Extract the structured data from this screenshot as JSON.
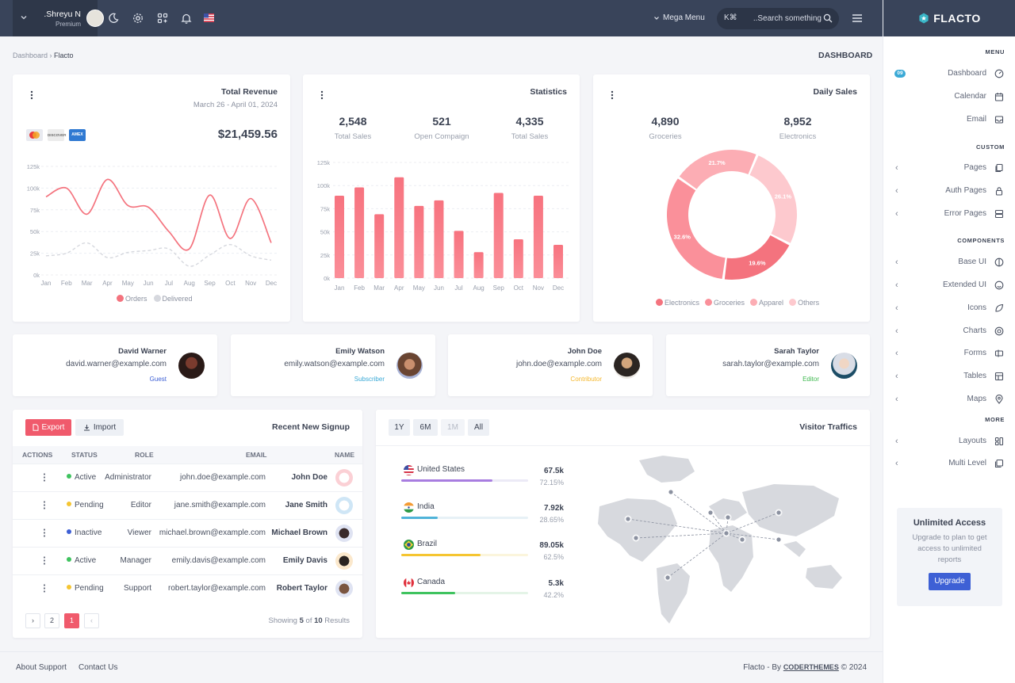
{
  "topbar": {
    "user_name": ".Shreyu N",
    "user_role": "Premium",
    "mega_menu": "Mega Menu",
    "search_kbd": "K⌘",
    "search_placeholder": "..Search something"
  },
  "sidebar": {
    "logo": "FLACTO",
    "sections": [
      "MENU",
      "CUSTOM",
      "COMPONENTS",
      "MORE"
    ],
    "dashboard_badge": "09",
    "menu": [
      "Dashboard",
      "Calendar",
      "Email"
    ],
    "custom": [
      "Pages",
      "Auth Pages",
      "Error Pages"
    ],
    "components": [
      "Base UI",
      "Extended UI",
      "Icons",
      "Charts",
      "Forms",
      "Tables",
      "Maps"
    ],
    "more": [
      "Layouts",
      "Multi Level"
    ],
    "upgrade": {
      "title": "Unlimited Access",
      "desc": "Upgrade to plan to get access to unlimited reports",
      "button": "Upgrade"
    }
  },
  "breadcrumb": {
    "root": "Dashboard",
    "current": "Flacto"
  },
  "page_title": "DASHBOARD",
  "revenue": {
    "title": "Total Revenue",
    "date_range": "March 26 - April 01, 2024",
    "amount": "$21,459.56",
    "cards": [
      "",
      "DISCOVER",
      "AMEX"
    ],
    "legend": [
      "Orders",
      "Delivered"
    ]
  },
  "statistics": {
    "title": "Statistics",
    "items": [
      {
        "value": "2,548",
        "label": "Total Sales"
      },
      {
        "value": "521",
        "label": "Open Compaign"
      },
      {
        "value": "4,335",
        "label": "Total Sales"
      }
    ]
  },
  "daily_sales": {
    "title": "Daily Sales",
    "items": [
      {
        "value": "4,890",
        "label": "Groceries"
      },
      {
        "value": "8,952",
        "label": "Electronics"
      }
    ]
  },
  "users": [
    {
      "name": "David Warner",
      "email": "david.warner@example.com",
      "role": "Guest",
      "role_color": "#3e60d5"
    },
    {
      "name": "Emily Watson",
      "email": "emily.watson@example.com",
      "role": "Subscriber",
      "role_color": "#3aa9d6"
    },
    {
      "name": "John Doe",
      "email": "john.doe@example.com",
      "role": "Contributor",
      "role_color": "#f5b82e"
    },
    {
      "name": "Sarah Taylor",
      "email": "sarah.taylor@example.com",
      "role": "Editor",
      "role_color": "#3fb950"
    }
  ],
  "signups": {
    "title": "Recent New Signup",
    "export": "Export",
    "import": "Import",
    "headers": [
      "ACTIONS",
      "STATUS",
      "ROLE",
      "EMAIL",
      "NAME"
    ],
    "rows": [
      {
        "status": "Active",
        "status_color": "#3fc35f",
        "role": "Administrator",
        "email": "john.doe@example.com",
        "name": "John Doe"
      },
      {
        "status": "Pending",
        "status_color": "#f5c531",
        "role": "Editor",
        "email": "jane.smith@example.com",
        "name": "Jane Smith"
      },
      {
        "status": "Inactive",
        "status_color": "#3e60d5",
        "role": "Viewer",
        "email": "michael.brown@example.com",
        "name": "Michael Brown"
      },
      {
        "status": "Active",
        "status_color": "#3fc35f",
        "role": "Manager",
        "email": "emily.davis@example.com",
        "name": "Emily Davis"
      },
      {
        "status": "Pending",
        "status_color": "#f5c531",
        "role": "Support",
        "email": "robert.taylor@example.com",
        "name": "Robert Taylor"
      }
    ],
    "pager": [
      "›",
      "2",
      "1",
      "‹"
    ],
    "showing_pre": "Showing ",
    "showing_n": "5",
    "showing_mid": " of ",
    "showing_total": "10",
    "showing_post": " Results"
  },
  "traffic": {
    "title": "Visitor Traffics",
    "ranges": [
      "1Y",
      "6M",
      "1M",
      "All"
    ],
    "countries": [
      {
        "name": "United States",
        "value": "67.5k",
        "pct": "72.15%",
        "pct_num": 72.15,
        "color": "#a87de0",
        "track": "#eceaf6"
      },
      {
        "name": "India",
        "value": "7.92k",
        "pct": "28.65%",
        "pct_num": 28.65,
        "color": "#4fb3d9",
        "track": "#e7f1f6"
      },
      {
        "name": "Brazil",
        "value": "89.05k",
        "pct": "62.5%",
        "pct_num": 62.5,
        "color": "#f5c531",
        "track": "#fbf5dc"
      },
      {
        "name": "Canada",
        "value": "5.3k",
        "pct": "42.2%",
        "pct_num": 42.2,
        "color": "#3fc35f",
        "track": "#e4f4e7"
      }
    ]
  },
  "footer": {
    "links": [
      "About Support",
      "Contact Us"
    ],
    "credit_pre": "Flacto - By ",
    "credit_brand": "CODERTHEMES",
    "credit_post": " © 2024"
  },
  "colors": {
    "accent": "#f4737e",
    "topbar": "#39445a",
    "primary": "#3e60d5"
  },
  "chart_data": [
    {
      "type": "line",
      "title": "Total Revenue",
      "categories": [
        "Jan",
        "Feb",
        "Mar",
        "Apr",
        "May",
        "Jun",
        "Jul",
        "Aug",
        "Sep",
        "Oct",
        "Nov",
        "Dec"
      ],
      "yticks": [
        "0k",
        "25k",
        "50k",
        "75k",
        "100k",
        "125k"
      ],
      "ylim": [
        0,
        125
      ],
      "series": [
        {
          "name": "Orders",
          "color": "#f4737e",
          "values": [
            90,
            100,
            70,
            110,
            80,
            78,
            50,
            30,
            92,
            42,
            88,
            37
          ]
        },
        {
          "name": "Delivered",
          "color": "#d6d8de",
          "values": [
            22,
            25,
            37,
            20,
            26,
            28,
            30,
            10,
            23,
            35,
            22,
            17
          ]
        }
      ]
    },
    {
      "type": "bar",
      "title": "Statistics",
      "categories": [
        "Jan",
        "Feb",
        "Mar",
        "Apr",
        "May",
        "Jun",
        "Jul",
        "Aug",
        "Sep",
        "Oct",
        "Nov",
        "Dec"
      ],
      "yticks": [
        "0k",
        "25k",
        "50k",
        "75k",
        "100k",
        "125k"
      ],
      "ylim": [
        0,
        125
      ],
      "values": [
        89,
        98,
        69,
        109,
        78,
        84,
        51,
        28,
        92,
        42,
        89,
        36
      ]
    },
    {
      "type": "pie",
      "title": "Daily Sales",
      "labels": [
        "Electronics",
        "Groceries",
        "Apparel",
        "Others"
      ],
      "values": [
        19.6,
        32.6,
        21.7,
        26.1
      ],
      "colors": [
        "#f4737e",
        "#fa909a",
        "#fcadb4",
        "#fdc9ce"
      ],
      "display_labels": [
        "19.6%",
        "32.6%",
        "21.7%",
        "26.1%"
      ]
    }
  ]
}
